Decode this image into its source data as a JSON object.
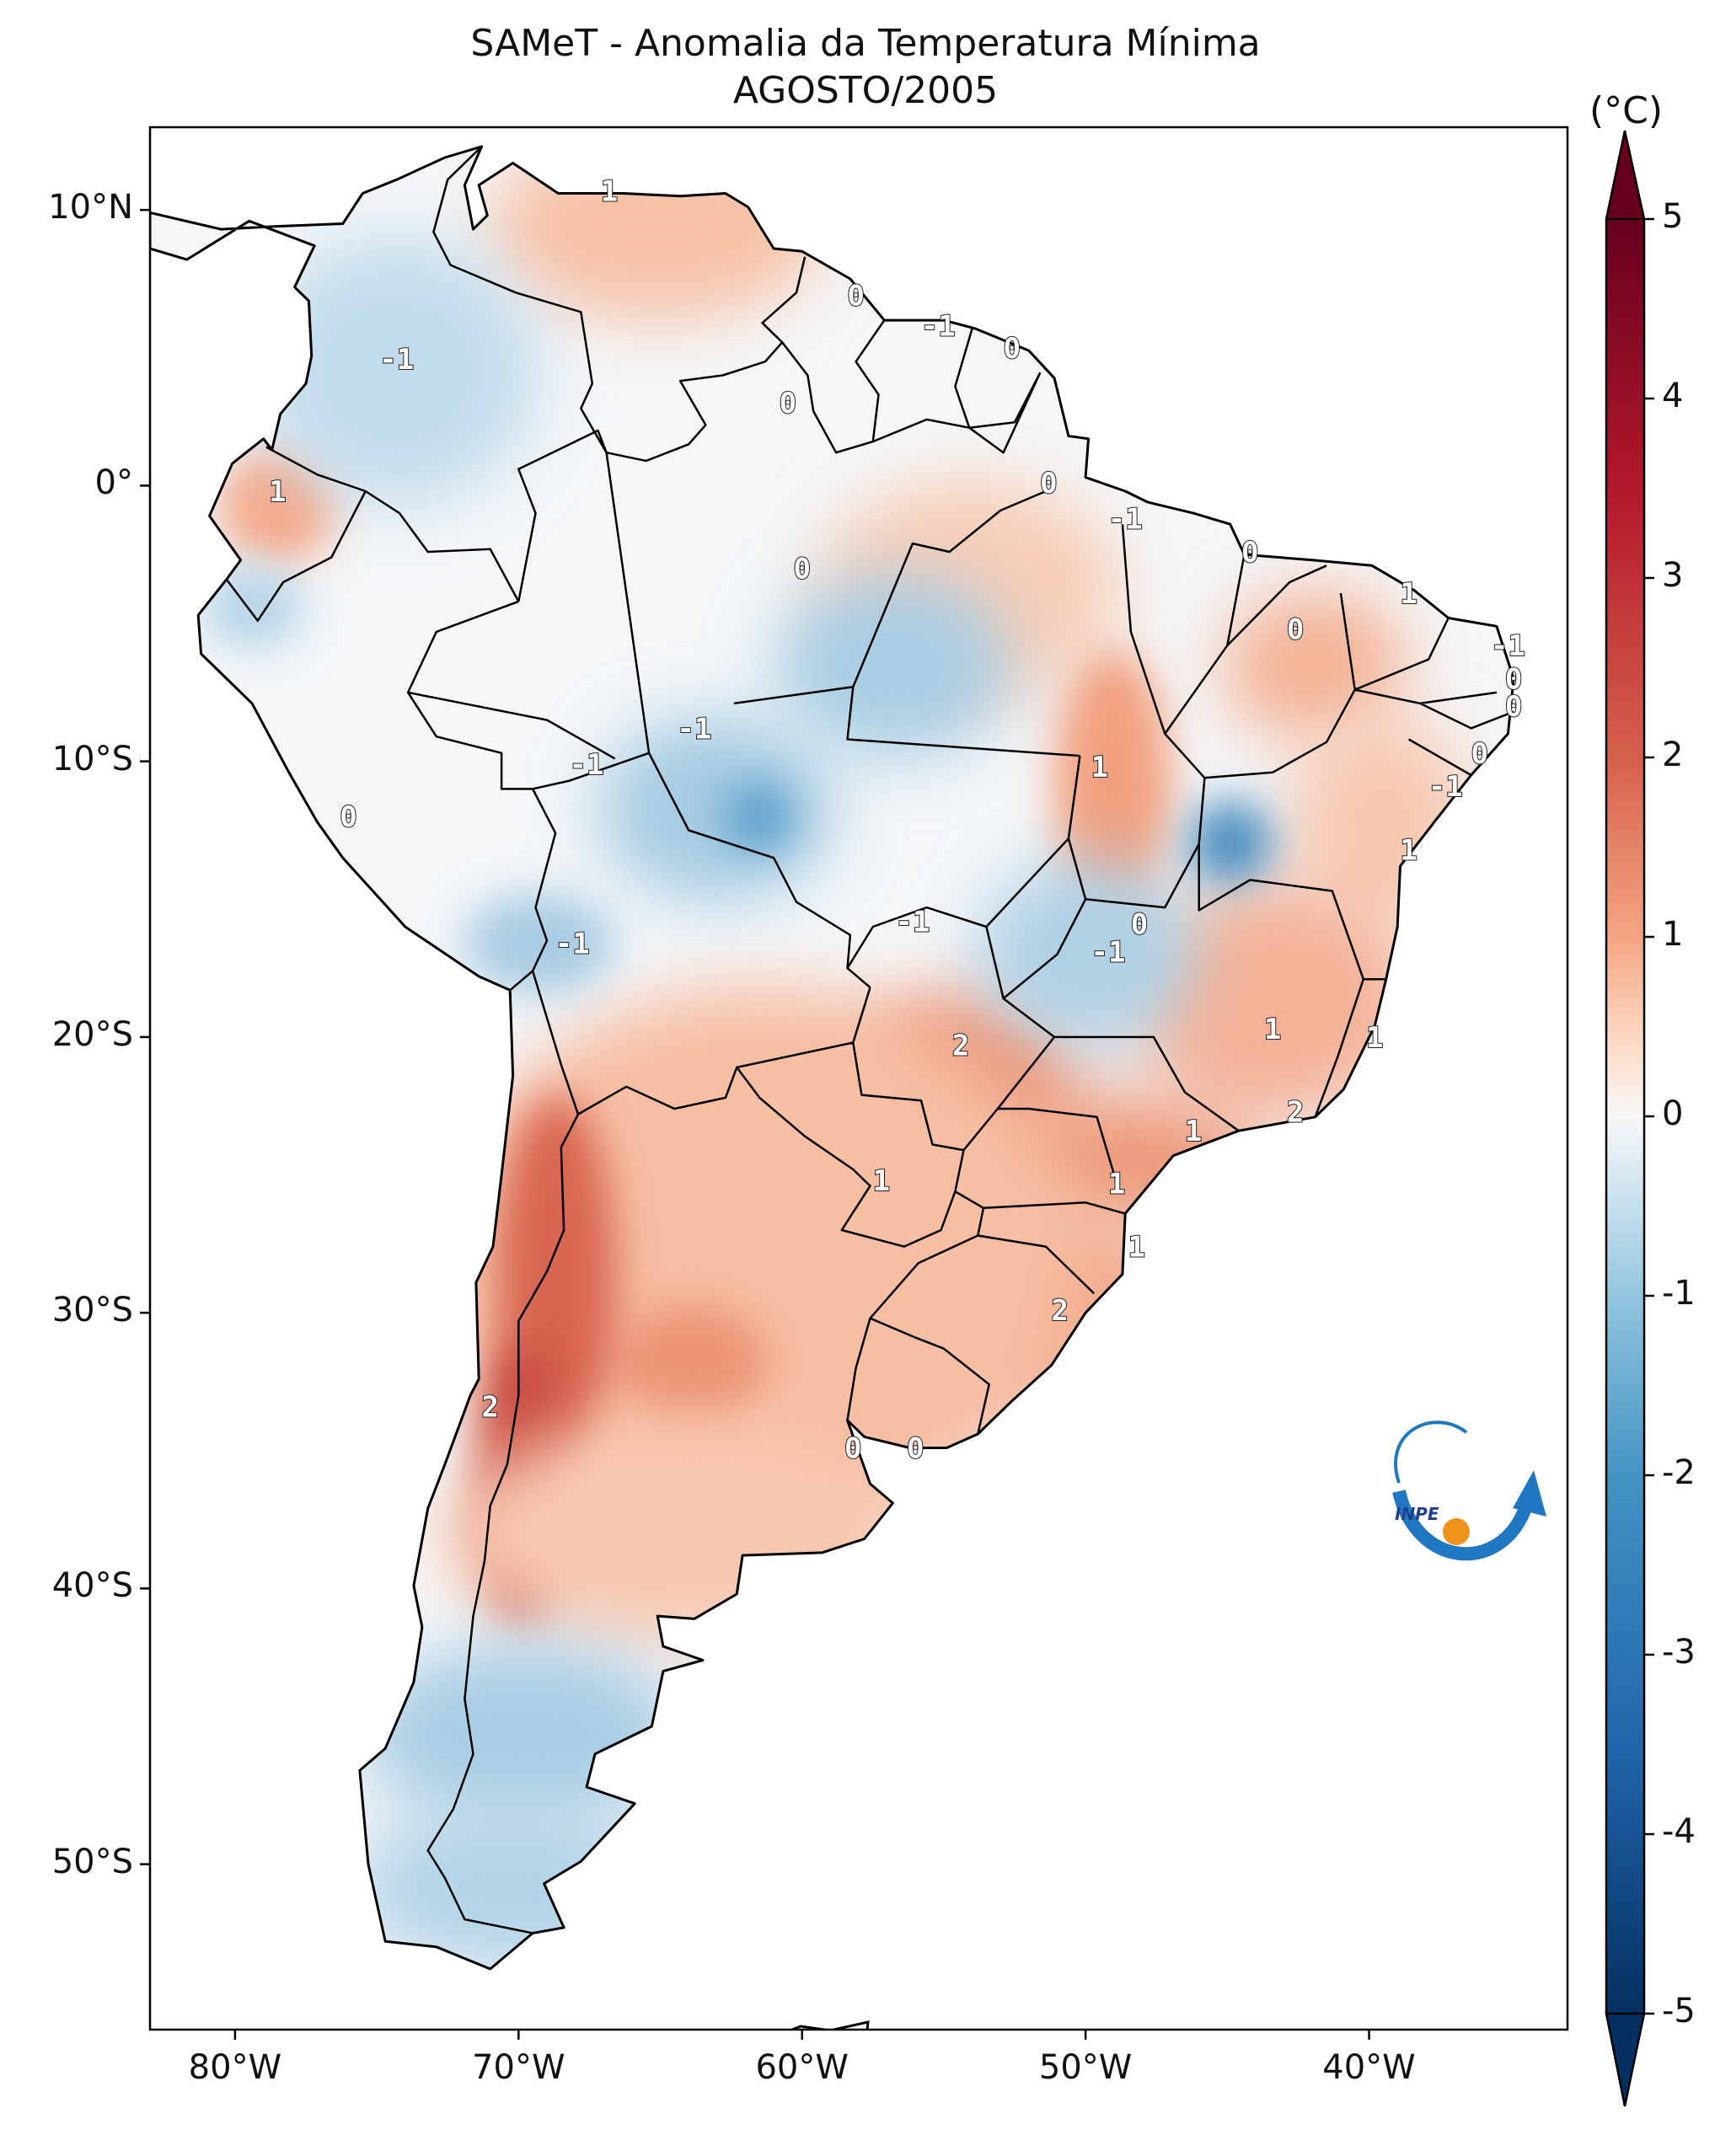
{
  "title": "SAMeT - Anomalia da Temperatura Mínima",
  "subtitle": "AGOSTO/2005",
  "colorbar": {
    "unit": "(°C)",
    "ticks": [
      "5",
      "4",
      "3",
      "2",
      "1",
      "0",
      "-1",
      "-2",
      "-3",
      "-4",
      "-5"
    ],
    "min": -5,
    "max": 5,
    "colors": {
      "cold_extreme": "#053061",
      "cold": "#2166ac",
      "cool": "#92c5de",
      "neutral": "#f7f7f7",
      "warm": "#f4a582",
      "hot": "#b2182b",
      "hot_extreme": "#67001f"
    }
  },
  "axes": {
    "lat_labels": [
      "10°N",
      "0°",
      "10°S",
      "20°S",
      "30°S",
      "40°S",
      "50°S"
    ],
    "lon_labels": [
      "80°W",
      "70°W",
      "60°W",
      "50°W",
      "40°W"
    ]
  },
  "contour_labels": [
    {
      "text": "1",
      "lon": -66.8,
      "lat": 10.7
    },
    {
      "text": "0",
      "lon": -58.1,
      "lat": 6.9
    },
    {
      "text": "-1",
      "lon": -55.2,
      "lat": 5.8
    },
    {
      "text": "0",
      "lon": -52.6,
      "lat": 5.0
    },
    {
      "text": "-1",
      "lon": -74.3,
      "lat": 4.6
    },
    {
      "text": "0",
      "lon": -60.5,
      "lat": 3.0
    },
    {
      "text": "1",
      "lon": -78.5,
      "lat": -0.2
    },
    {
      "text": "0",
      "lon": -51.3,
      "lat": 0.1
    },
    {
      "text": "-1",
      "lon": -48.6,
      "lat": -1.2
    },
    {
      "text": "0",
      "lon": -60.0,
      "lat": -3.0
    },
    {
      "text": "0",
      "lon": -44.2,
      "lat": -2.4
    },
    {
      "text": "1",
      "lon": -38.6,
      "lat": -3.9
    },
    {
      "text": "0",
      "lon": -42.6,
      "lat": -5.2
    },
    {
      "text": "-1",
      "lon": -35.1,
      "lat": -5.8
    },
    {
      "text": "0",
      "lon": -34.9,
      "lat": -7.0
    },
    {
      "text": "0",
      "lon": -34.9,
      "lat": -8.0
    },
    {
      "text": "-1",
      "lon": -63.8,
      "lat": -8.8
    },
    {
      "text": "0",
      "lon": -36.1,
      "lat": -9.7
    },
    {
      "text": "-1",
      "lon": -67.6,
      "lat": -10.1
    },
    {
      "text": "1",
      "lon": -49.5,
      "lat": -10.2
    },
    {
      "text": "-1",
      "lon": -37.3,
      "lat": -10.9
    },
    {
      "text": "0",
      "lon": -76.0,
      "lat": -12.0
    },
    {
      "text": "1",
      "lon": -38.6,
      "lat": -13.2
    },
    {
      "text": "-1",
      "lon": -56.1,
      "lat": -15.8
    },
    {
      "text": "0",
      "lon": -48.1,
      "lat": -15.9
    },
    {
      "text": "-1",
      "lon": -49.2,
      "lat": -16.9
    },
    {
      "text": "-1",
      "lon": -68.1,
      "lat": -16.6
    },
    {
      "text": "1",
      "lon": -43.4,
      "lat": -19.7
    },
    {
      "text": "1",
      "lon": -39.8,
      "lat": -20.0
    },
    {
      "text": "2",
      "lon": -54.4,
      "lat": -20.3
    },
    {
      "text": "2",
      "lon": -42.6,
      "lat": -22.7
    },
    {
      "text": "1",
      "lon": -46.2,
      "lat": -23.4
    },
    {
      "text": "1",
      "lon": -57.2,
      "lat": -25.2
    },
    {
      "text": "1",
      "lon": -48.9,
      "lat": -25.3
    },
    {
      "text": "1",
      "lon": -48.2,
      "lat": -27.6
    },
    {
      "text": "2",
      "lon": -50.9,
      "lat": -29.9
    },
    {
      "text": "2",
      "lon": -71.0,
      "lat": -33.4
    },
    {
      "text": "0",
      "lon": -58.2,
      "lat": -34.9
    },
    {
      "text": "0",
      "lon": -56.0,
      "lat": -34.9
    }
  ],
  "logo": {
    "text": "INPE"
  }
}
